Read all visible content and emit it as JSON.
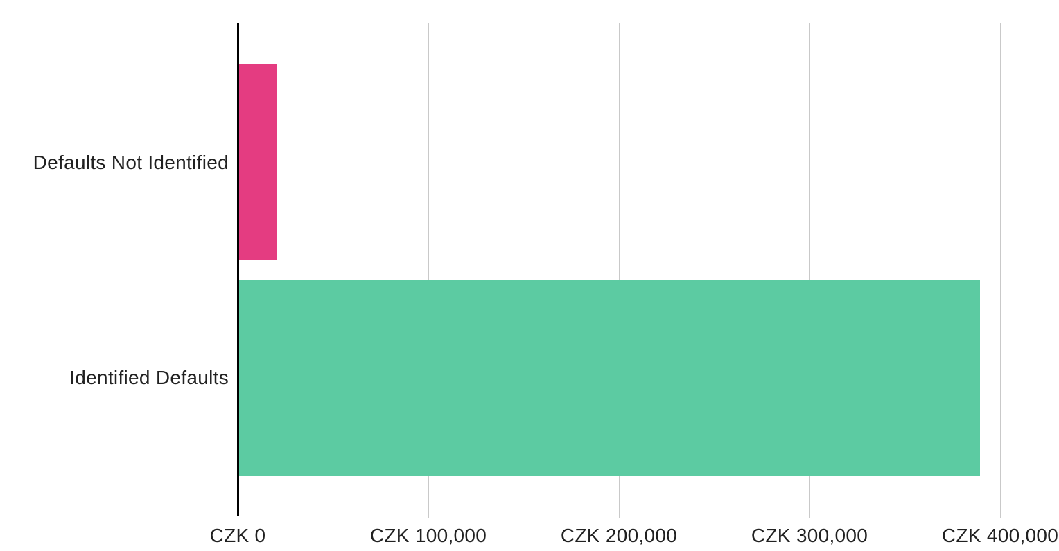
{
  "chart_data": {
    "type": "bar",
    "orientation": "horizontal",
    "title": "",
    "xlabel": "",
    "ylabel": "",
    "categories": [
      "Defaults Not Identified",
      "Identified Defaults"
    ],
    "values": [
      20000,
      389000
    ],
    "value_unit": "CZK",
    "bar_colors": [
      "#e43c81",
      "#5ccba2"
    ],
    "xlim": [
      0,
      400000
    ],
    "x_ticks": [
      {
        "value": 0,
        "label": "CZK 0"
      },
      {
        "value": 100000,
        "label": "CZK 100,000"
      },
      {
        "value": 200000,
        "label": "CZK 200,000"
      },
      {
        "value": 300000,
        "label": "CZK 300,000"
      },
      {
        "value": 400000,
        "label": "CZK 400,000"
      }
    ],
    "grid": "vertical-only",
    "legend": "none",
    "colors": {
      "background": "#ffffff",
      "axis_line": "#000000",
      "gridline": "#c9c9c9",
      "text": "#212121"
    }
  }
}
